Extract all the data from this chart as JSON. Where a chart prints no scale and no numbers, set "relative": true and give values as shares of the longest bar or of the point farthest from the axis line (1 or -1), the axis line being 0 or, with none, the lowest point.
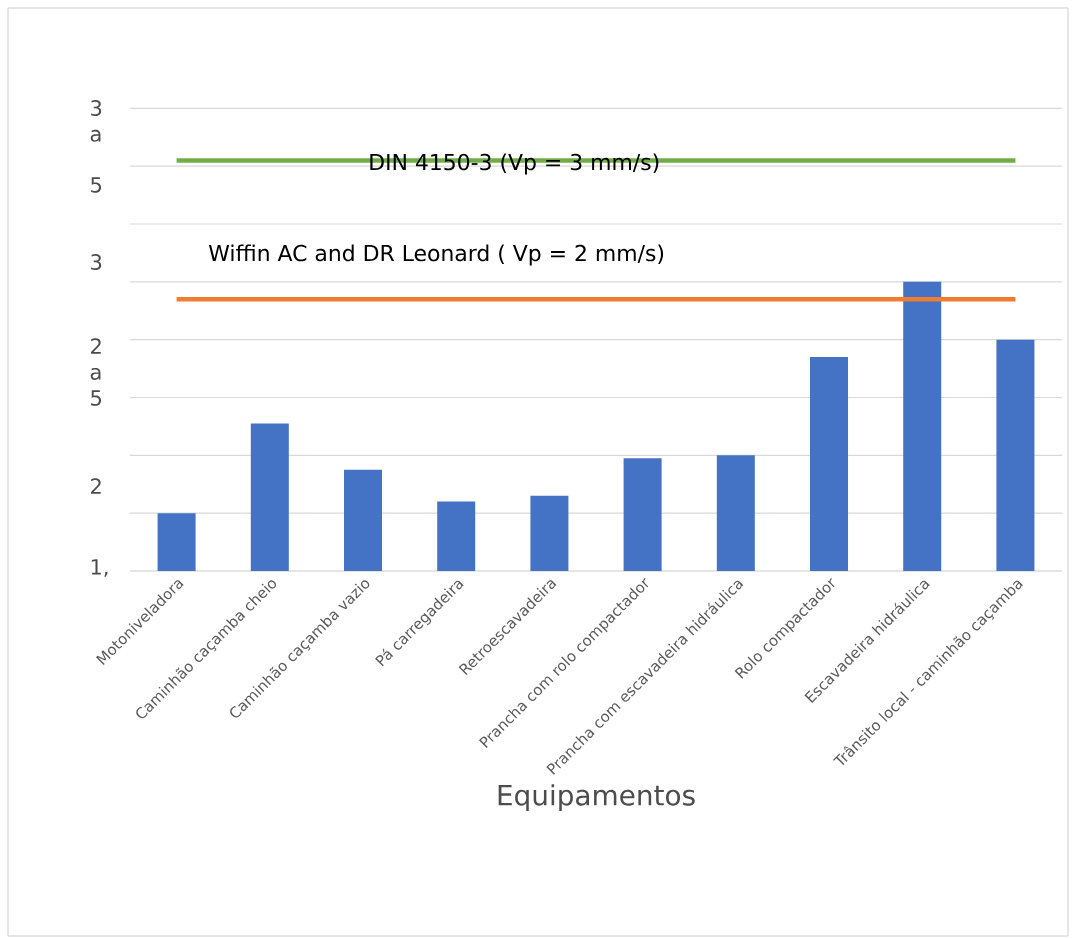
{
  "chart_data": {
    "type": "bar",
    "xlabel": "Equipamentos",
    "categories": [
      "Motoniveladora",
      "Caminhão caçamba cheio",
      "Caminhão caçamba vazio",
      "Pá carregadeira",
      "Retroescavadeira",
      "Prancha com rolo compactador",
      "Prancha com escavadeira hidráulica",
      "Rolo compactador",
      "Escavadeira hidráulica",
      "Trânsito local - caminhão caçamba"
    ],
    "values": [
      0.2,
      0.51,
      0.35,
      0.24,
      0.26,
      0.39,
      0.4,
      0.74,
      1,
      0.8
    ],
    "relative": true,
    "color": "#4472c4",
    "annotations": [
      "DIN 4150-3 (Vp = 3 mm/s)",
      "Wiffin AC and  DR Leonard ( Vp = 2 mm/s)",
      "3 a",
      "5",
      "3",
      "2 a 5",
      "2",
      "1,"
    ],
    "grid": "y",
    "ref_lines": [
      {
        "axis": "y",
        "value": 1.42,
        "color": "#70ad47"
      },
      {
        "axis": "y",
        "value": 0.94,
        "color": "#ed7d31"
      }
    ]
  }
}
